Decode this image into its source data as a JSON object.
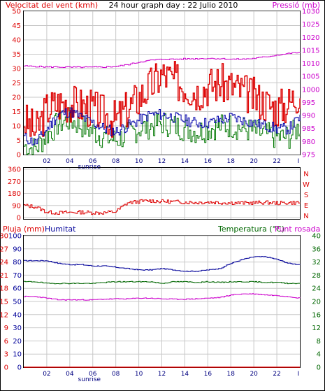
{
  "title": "24 hour graph day : 22 Julio 2010",
  "colors": {
    "wind": "#dd0000",
    "avg": "#0000aa",
    "gust": "#007700",
    "pressure": "#cc00cc",
    "hum": "#000099",
    "temp": "#006600",
    "dew": "#cc00cc",
    "rain": "#dd0000",
    "grid": "#c8c8c8",
    "frame": "#000000"
  },
  "x_labels": [
    "02",
    "04",
    "06",
    "08",
    "10",
    "12",
    "14",
    "16",
    "18",
    "20",
    "22"
  ],
  "sunrise_label": "sunrise",
  "chart_data": [
    {
      "type": "line",
      "title": "24 hour graph day : 22 Julio 2010",
      "ylabel_left": "Velocitat del vent (kmh)",
      "ylabel_right": "Pressió (mb)",
      "ylim_left": [
        0,
        50
      ],
      "ylim_right": [
        975,
        1030
      ],
      "left_ticks": [
        "0",
        "5",
        "10",
        "15",
        "20",
        "25",
        "30",
        "35",
        "40",
        "45",
        "50"
      ],
      "right_ticks": [
        "975",
        "980",
        "985",
        "990",
        "995",
        "1000",
        "1005",
        "1010",
        "1015",
        "1020",
        "1025",
        "1030"
      ],
      "x_hours": [
        0,
        1,
        2,
        3,
        4,
        5,
        6,
        7,
        8,
        9,
        10,
        11,
        12,
        13,
        14,
        15,
        16,
        17,
        18,
        19,
        20,
        21,
        22,
        23,
        24
      ],
      "series": [
        {
          "key": "wind_max",
          "axis": "left",
          "values": [
            12,
            8,
            16,
            18,
            18,
            17,
            16,
            14,
            12,
            16,
            20,
            24,
            28,
            26,
            24,
            22,
            24,
            25,
            24,
            22,
            20,
            18,
            16,
            18,
            22
          ]
        },
        {
          "key": "wind_avg",
          "axis": "left",
          "values": [
            6,
            4,
            9,
            14,
            15,
            13,
            11,
            9,
            8,
            10,
            12,
            14,
            14,
            13,
            12,
            11,
            11,
            12,
            13,
            12,
            11,
            10,
            9,
            9,
            13
          ]
        },
        {
          "key": "wind_gust",
          "axis": "left",
          "values": [
            3,
            2,
            7,
            11,
            12,
            10,
            8,
            6,
            5,
            7,
            9,
            10,
            11,
            10,
            9,
            8,
            9,
            10,
            10,
            9,
            8,
            7,
            6,
            6,
            10
          ]
        },
        {
          "key": "pressure",
          "axis": "right",
          "values": [
            1009,
            1008.8,
            1008.6,
            1008.6,
            1008.5,
            1008.5,
            1008.5,
            1008.6,
            1008.8,
            1009.5,
            1010.5,
            1011.2,
            1011.5,
            1011.6,
            1011.7,
            1011.8,
            1011.9,
            1011.8,
            1011.6,
            1011.6,
            1011.9,
            1012.5,
            1013.2,
            1013.8,
            1014.2
          ]
        }
      ]
    },
    {
      "type": "line",
      "ylim": [
        0,
        360
      ],
      "left_ticks": [
        "0",
        "90",
        "180",
        "270",
        "360"
      ],
      "right_labels": [
        "N",
        "W",
        "S",
        "E",
        "N"
      ],
      "x_hours": [
        0,
        1,
        2,
        3,
        4,
        5,
        6,
        7,
        8,
        9,
        10,
        11,
        12,
        13,
        14,
        15,
        16,
        17,
        18,
        19,
        20,
        21,
        22,
        23,
        24
      ],
      "series": [
        {
          "key": "wind_dir",
          "values": [
            90,
            80,
            40,
            35,
            38,
            40,
            36,
            35,
            45,
            110,
            120,
            125,
            120,
            118,
            115,
            112,
            115,
            112,
            110,
            108,
            110,
            112,
            108,
            110,
            112
          ]
        }
      ]
    },
    {
      "type": "line",
      "legend": [
        "Pluja (mm)",
        "Humitat",
        "Temperatura (°C)",
        "Punt rosada"
      ],
      "rain_ticks": [
        "0",
        "3",
        "6",
        "9",
        "12",
        "15",
        "18",
        "21",
        "24",
        "27",
        "30"
      ],
      "hum_ticks": [
        "0",
        "10",
        "20",
        "30",
        "40",
        "50",
        "60",
        "70",
        "80",
        "90",
        "100"
      ],
      "temp_ticks": [
        "0",
        "4",
        "8",
        "12",
        "16",
        "20",
        "24",
        "28",
        "32",
        "36",
        "40"
      ],
      "x_hours": [
        0,
        1,
        2,
        3,
        4,
        5,
        6,
        7,
        8,
        9,
        10,
        11,
        12,
        13,
        14,
        15,
        16,
        17,
        18,
        19,
        20,
        21,
        22,
        23,
        24
      ],
      "series": [
        {
          "key": "humidity",
          "axis": "hum",
          "values": [
            81,
            81,
            81,
            79,
            78,
            78,
            77,
            77,
            76,
            75,
            74,
            74,
            75,
            74,
            73,
            73,
            74,
            75,
            79,
            82,
            84,
            84,
            82,
            79,
            78
          ]
        },
        {
          "key": "temperature",
          "axis": "temp",
          "values": [
            26,
            26,
            25.5,
            25.5,
            25.5,
            25.5,
            25.5,
            25.8,
            26,
            26,
            26,
            26,
            25.5,
            26,
            26,
            25.8,
            26,
            25.8,
            26,
            26,
            26,
            25.8,
            25.8,
            25.5,
            25.5
          ]
        },
        {
          "key": "dewpoint",
          "axis": "temp",
          "values": [
            21.5,
            21.5,
            21,
            20.5,
            20.5,
            20.5,
            20.5,
            20.7,
            20.8,
            20.8,
            21,
            21,
            20.8,
            20.7,
            20.7,
            20.8,
            21,
            21.2,
            22,
            22.3,
            22.3,
            22,
            21.8,
            21.5,
            21
          ]
        },
        {
          "key": "rain",
          "axis": "rain",
          "values": [
            0,
            0,
            0,
            0,
            0,
            0,
            0,
            0,
            0,
            0,
            0,
            0,
            0,
            0,
            0,
            0,
            0,
            0,
            0,
            0,
            0,
            0,
            0,
            0,
            0
          ]
        }
      ]
    }
  ],
  "labels": {
    "wind": "Velocitat del vent (kmh)",
    "pressure": "Pressió (mb)",
    "rain": "Pluja (mm)",
    "humidity": "Humitat",
    "temperature": "Temperatura (°C)",
    "dewpoint": "Punt rosada"
  }
}
